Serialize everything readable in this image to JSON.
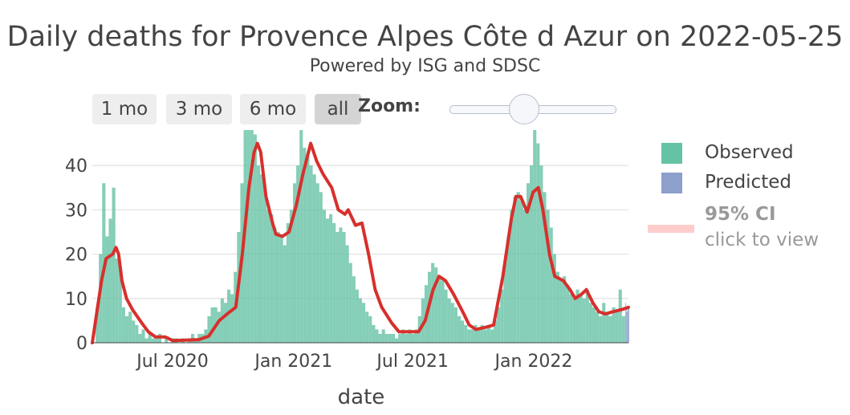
{
  "header": {
    "title": "Daily deaths for Provence Alpes Côte d Azur on 2022-05-25",
    "subtitle": "Powered by ISG and SDSC"
  },
  "range_selector": {
    "buttons": [
      {
        "label": "1 mo",
        "active": false
      },
      {
        "label": "3 mo",
        "active": false
      },
      {
        "label": "6 mo",
        "active": false
      },
      {
        "label": "all",
        "active": true
      }
    ],
    "zoom_label": "Zoom:",
    "zoom_level": 0.45
  },
  "legend": {
    "observed": "Observed",
    "predicted": "Predicted",
    "ci_title": "95% CI",
    "ci_subtitle": "click to view"
  },
  "colors": {
    "observed": "#66c2a5",
    "predicted": "#8da0cb",
    "line": "#d7302c",
    "ci": "#ffcccc"
  },
  "chart_data": {
    "type": "bar",
    "xlabel": "date",
    "ylabel": "",
    "ylim": [
      0,
      48
    ],
    "xlim": [
      "2020-03-01",
      "2022-05-25"
    ],
    "yticks": [
      0,
      10,
      20,
      30,
      40
    ],
    "xticks": [
      {
        "date": "2020-07-01",
        "label": "Jul 2020"
      },
      {
        "date": "2021-01-01",
        "label": "Jan 2021"
      },
      {
        "date": "2021-07-01",
        "label": "Jul 2021"
      },
      {
        "date": "2022-01-01",
        "label": "Jan 2022"
      }
    ],
    "grid": true,
    "legend_position": "right",
    "series": [
      {
        "name": "Observed",
        "kind": "bar",
        "points": [
          [
            "2020-03-01",
            0
          ],
          [
            "2020-03-06",
            8
          ],
          [
            "2020-03-11",
            20
          ],
          [
            "2020-03-16",
            36
          ],
          [
            "2020-03-21",
            24
          ],
          [
            "2020-03-26",
            28
          ],
          [
            "2020-03-31",
            35
          ],
          [
            "2020-04-05",
            19
          ],
          [
            "2020-04-10",
            17
          ],
          [
            "2020-04-15",
            8
          ],
          [
            "2020-04-20",
            6
          ],
          [
            "2020-04-25",
            7
          ],
          [
            "2020-04-30",
            5
          ],
          [
            "2020-05-05",
            4
          ],
          [
            "2020-05-10",
            2
          ],
          [
            "2020-05-15",
            3
          ],
          [
            "2020-05-20",
            1
          ],
          [
            "2020-05-25",
            2
          ],
          [
            "2020-05-30",
            1
          ],
          [
            "2020-06-04",
            1
          ],
          [
            "2020-06-09",
            2
          ],
          [
            "2020-06-14",
            0
          ],
          [
            "2020-06-19",
            1
          ],
          [
            "2020-06-24",
            0
          ],
          [
            "2020-06-29",
            1
          ],
          [
            "2020-07-04",
            1
          ],
          [
            "2020-07-09",
            0
          ],
          [
            "2020-07-14",
            1
          ],
          [
            "2020-07-19",
            0
          ],
          [
            "2020-07-24",
            1
          ],
          [
            "2020-07-29",
            2
          ],
          [
            "2020-08-03",
            1
          ],
          [
            "2020-08-08",
            2
          ],
          [
            "2020-08-13",
            2
          ],
          [
            "2020-08-18",
            3
          ],
          [
            "2020-08-23",
            6
          ],
          [
            "2020-08-28",
            8
          ],
          [
            "2020-09-02",
            8
          ],
          [
            "2020-09-07",
            7
          ],
          [
            "2020-09-12",
            10
          ],
          [
            "2020-09-17",
            9
          ],
          [
            "2020-09-22",
            12
          ],
          [
            "2020-09-27",
            11
          ],
          [
            "2020-10-02",
            16
          ],
          [
            "2020-10-07",
            25
          ],
          [
            "2020-10-12",
            36
          ],
          [
            "2020-10-17",
            48
          ],
          [
            "2020-10-22",
            48
          ],
          [
            "2020-10-27",
            48
          ],
          [
            "2020-11-01",
            47
          ],
          [
            "2020-11-06",
            40
          ],
          [
            "2020-11-11",
            38
          ],
          [
            "2020-11-16",
            35
          ],
          [
            "2020-11-21",
            30
          ],
          [
            "2020-11-26",
            29
          ],
          [
            "2020-12-01",
            26
          ],
          [
            "2020-12-06",
            25
          ],
          [
            "2020-12-11",
            24
          ],
          [
            "2020-12-16",
            22
          ],
          [
            "2020-12-21",
            27
          ],
          [
            "2020-12-26",
            30
          ],
          [
            "2020-12-31",
            36
          ],
          [
            "2021-01-05",
            40
          ],
          [
            "2021-01-10",
            48
          ],
          [
            "2021-01-15",
            44
          ],
          [
            "2021-01-20",
            42
          ],
          [
            "2021-01-25",
            40
          ],
          [
            "2021-01-30",
            38
          ],
          [
            "2021-02-04",
            36
          ],
          [
            "2021-02-09",
            34
          ],
          [
            "2021-02-14",
            30
          ],
          [
            "2021-02-19",
            28
          ],
          [
            "2021-02-24",
            29
          ],
          [
            "2021-03-01",
            27
          ],
          [
            "2021-03-06",
            25
          ],
          [
            "2021-03-11",
            26
          ],
          [
            "2021-03-16",
            25
          ],
          [
            "2021-03-21",
            22
          ],
          [
            "2021-03-26",
            18
          ],
          [
            "2021-03-31",
            15
          ],
          [
            "2021-04-05",
            12
          ],
          [
            "2021-04-10",
            10
          ],
          [
            "2021-04-15",
            9
          ],
          [
            "2021-04-20",
            7
          ],
          [
            "2021-04-25",
            6
          ],
          [
            "2021-04-30",
            4
          ],
          [
            "2021-05-05",
            3
          ],
          [
            "2021-05-10",
            2
          ],
          [
            "2021-05-15",
            3
          ],
          [
            "2021-05-20",
            2
          ],
          [
            "2021-05-25",
            2
          ],
          [
            "2021-05-30",
            2
          ],
          [
            "2021-06-04",
            1
          ],
          [
            "2021-06-09",
            2
          ],
          [
            "2021-06-14",
            3
          ],
          [
            "2021-06-19",
            2
          ],
          [
            "2021-06-24",
            3
          ],
          [
            "2021-06-29",
            2
          ],
          [
            "2021-07-04",
            3
          ],
          [
            "2021-07-09",
            6
          ],
          [
            "2021-07-14",
            10
          ],
          [
            "2021-07-19",
            13
          ],
          [
            "2021-07-24",
            16
          ],
          [
            "2021-07-29",
            18
          ],
          [
            "2021-08-03",
            17
          ],
          [
            "2021-08-08",
            15
          ],
          [
            "2021-08-13",
            14
          ],
          [
            "2021-08-18",
            12
          ],
          [
            "2021-08-23",
            10
          ],
          [
            "2021-08-28",
            9
          ],
          [
            "2021-09-02",
            8
          ],
          [
            "2021-09-07",
            6
          ],
          [
            "2021-09-12",
            5
          ],
          [
            "2021-09-17",
            4
          ],
          [
            "2021-09-22",
            3
          ],
          [
            "2021-09-27",
            3
          ],
          [
            "2021-10-02",
            4
          ],
          [
            "2021-10-07",
            3
          ],
          [
            "2021-10-12",
            4
          ],
          [
            "2021-10-17",
            3
          ],
          [
            "2021-10-22",
            4
          ],
          [
            "2021-10-27",
            3
          ],
          [
            "2021-11-01",
            5
          ],
          [
            "2021-11-06",
            8
          ],
          [
            "2021-11-11",
            12
          ],
          [
            "2021-11-16",
            18
          ],
          [
            "2021-11-21",
            24
          ],
          [
            "2021-11-26",
            30
          ],
          [
            "2021-12-01",
            33
          ],
          [
            "2021-12-06",
            34
          ],
          [
            "2021-12-11",
            32
          ],
          [
            "2021-12-16",
            30
          ],
          [
            "2021-12-21",
            36
          ],
          [
            "2021-12-26",
            40
          ],
          [
            "2021-12-31",
            48
          ],
          [
            "2022-01-05",
            45
          ],
          [
            "2022-01-10",
            40
          ],
          [
            "2022-01-15",
            34
          ],
          [
            "2022-01-20",
            30
          ],
          [
            "2022-01-25",
            26
          ],
          [
            "2022-01-30",
            20
          ],
          [
            "2022-02-04",
            16
          ],
          [
            "2022-02-09",
            14
          ],
          [
            "2022-02-14",
            15
          ],
          [
            "2022-02-19",
            13
          ],
          [
            "2022-02-24",
            11
          ],
          [
            "2022-03-01",
            10
          ],
          [
            "2022-03-06",
            12
          ],
          [
            "2022-03-11",
            11
          ],
          [
            "2022-03-16",
            10
          ],
          [
            "2022-03-21",
            12
          ],
          [
            "2022-03-26",
            9
          ],
          [
            "2022-03-31",
            8
          ],
          [
            "2022-04-05",
            7
          ],
          [
            "2022-04-10",
            6
          ],
          [
            "2022-04-15",
            9
          ],
          [
            "2022-04-20",
            7
          ],
          [
            "2022-04-25",
            6
          ],
          [
            "2022-04-30",
            8
          ],
          [
            "2022-05-05",
            7
          ],
          [
            "2022-05-10",
            12
          ],
          [
            "2022-05-15",
            6
          ],
          [
            "2022-05-20",
            9
          ]
        ]
      },
      {
        "name": "Predicted",
        "kind": "bar",
        "points": [
          [
            "2022-05-21",
            7
          ],
          [
            "2022-05-22",
            8
          ],
          [
            "2022-05-23",
            7
          ],
          [
            "2022-05-24",
            8
          ],
          [
            "2022-05-25",
            8
          ]
        ]
      },
      {
        "name": "Trend",
        "kind": "line",
        "points": [
          [
            "2020-03-01",
            0
          ],
          [
            "2020-03-15",
            14
          ],
          [
            "2020-03-22",
            19
          ],
          [
            "2020-04-01",
            20
          ],
          [
            "2020-04-06",
            21.5
          ],
          [
            "2020-04-10",
            20
          ],
          [
            "2020-04-15",
            14
          ],
          [
            "2020-04-22",
            10
          ],
          [
            "2020-05-01",
            7.5
          ],
          [
            "2020-05-15",
            4.5
          ],
          [
            "2020-05-25",
            2.5
          ],
          [
            "2020-06-05",
            1.3
          ],
          [
            "2020-06-20",
            1.3
          ],
          [
            "2020-07-01",
            0.5
          ],
          [
            "2020-07-20",
            0.6
          ],
          [
            "2020-08-10",
            0.7
          ],
          [
            "2020-08-25",
            1.5
          ],
          [
            "2020-09-10",
            5
          ],
          [
            "2020-09-22",
            6.5
          ],
          [
            "2020-10-05",
            8
          ],
          [
            "2020-10-15",
            20
          ],
          [
            "2020-10-25",
            35
          ],
          [
            "2020-11-02",
            43
          ],
          [
            "2020-11-07",
            45
          ],
          [
            "2020-11-12",
            43
          ],
          [
            "2020-11-20",
            33
          ],
          [
            "2020-11-30",
            27
          ],
          [
            "2020-12-05",
            24.5
          ],
          [
            "2020-12-15",
            24
          ],
          [
            "2020-12-25",
            25
          ],
          [
            "2021-01-05",
            31
          ],
          [
            "2021-01-15",
            38
          ],
          [
            "2021-01-27",
            45
          ],
          [
            "2021-02-05",
            41
          ],
          [
            "2021-02-15",
            38
          ],
          [
            "2021-02-28",
            35
          ],
          [
            "2021-03-10",
            30
          ],
          [
            "2021-03-20",
            29
          ],
          [
            "2021-03-25",
            30
          ],
          [
            "2021-04-05",
            26.5
          ],
          [
            "2021-04-15",
            27
          ],
          [
            "2021-04-25",
            20
          ],
          [
            "2021-05-05",
            12
          ],
          [
            "2021-05-15",
            8
          ],
          [
            "2021-05-30",
            4.5
          ],
          [
            "2021-06-10",
            2.5
          ],
          [
            "2021-06-25",
            2.5
          ],
          [
            "2021-07-10",
            2.5
          ],
          [
            "2021-07-20",
            5
          ],
          [
            "2021-08-01",
            12
          ],
          [
            "2021-08-10",
            15
          ],
          [
            "2021-08-20",
            14
          ],
          [
            "2021-09-01",
            11
          ],
          [
            "2021-09-15",
            7
          ],
          [
            "2021-09-25",
            4
          ],
          [
            "2021-10-05",
            3
          ],
          [
            "2021-10-20",
            3.5
          ],
          [
            "2021-11-01",
            4
          ],
          [
            "2021-11-15",
            15
          ],
          [
            "2021-11-28",
            28
          ],
          [
            "2021-12-05",
            33
          ],
          [
            "2021-12-12",
            33
          ],
          [
            "2021-12-22",
            29.5
          ],
          [
            "2021-12-31",
            34
          ],
          [
            "2022-01-08",
            35
          ],
          [
            "2022-01-15",
            30
          ],
          [
            "2022-01-25",
            20
          ],
          [
            "2022-02-02",
            15
          ],
          [
            "2022-02-15",
            14
          ],
          [
            "2022-02-25",
            12
          ],
          [
            "2022-03-05",
            10
          ],
          [
            "2022-03-15",
            11
          ],
          [
            "2022-03-22",
            12
          ],
          [
            "2022-04-01",
            9
          ],
          [
            "2022-04-10",
            7
          ],
          [
            "2022-04-20",
            6.5
          ],
          [
            "2022-05-01",
            7
          ],
          [
            "2022-05-15",
            7.5
          ],
          [
            "2022-05-25",
            8
          ]
        ]
      }
    ]
  }
}
